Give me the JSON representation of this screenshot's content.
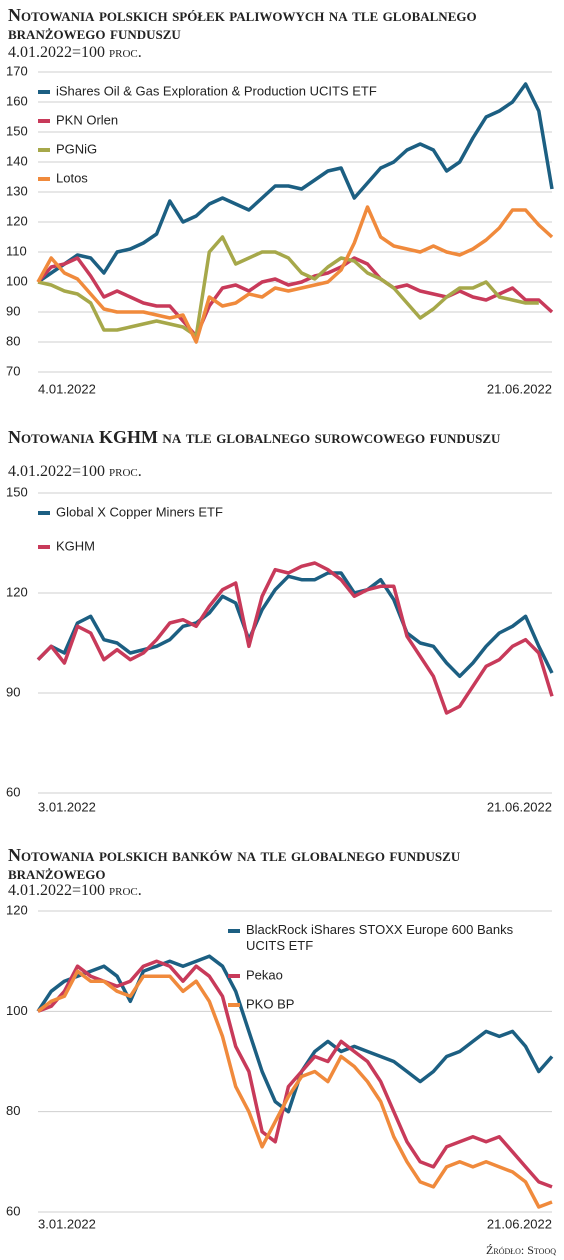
{
  "chart_data": [
    {
      "type": "line",
      "title": "Notowania polskich spółek paliwowych na tle globalnego branżowego funduszu",
      "subtitle": "4.01.2022=100 proc.",
      "categories": [
        "4.01.2022",
        null,
        null,
        null,
        null,
        null,
        null,
        null,
        null,
        null,
        null,
        null,
        null,
        null,
        null,
        null,
        null,
        null,
        null,
        null,
        null,
        null,
        null,
        null,
        null,
        null,
        null,
        null,
        null,
        null,
        null,
        null,
        null,
        null,
        null,
        null,
        null,
        null,
        null,
        "21.06.2022"
      ],
      "series": [
        {
          "name": "iShares Oil & Gas Exploration & Production UCITS ETF",
          "color": "#1c5f82",
          "values": [
            100,
            103,
            106,
            109,
            108,
            103,
            110,
            111,
            113,
            116,
            127,
            120,
            122,
            126,
            128,
            126,
            124,
            128,
            132,
            132,
            131,
            134,
            137,
            138,
            128,
            133,
            138,
            140,
            144,
            146,
            144,
            137,
            140,
            148,
            155,
            157,
            160,
            166,
            157,
            131
          ]
        },
        {
          "name": "PKN Orlen",
          "color": "#c83a5a",
          "values": [
            100,
            105,
            106,
            108,
            102,
            95,
            97,
            95,
            93,
            92,
            92,
            87,
            82,
            92,
            98,
            99,
            97,
            100,
            101,
            99,
            100,
            102,
            103,
            105,
            108,
            106,
            101,
            98,
            99,
            97,
            96,
            95,
            97,
            95,
            94,
            96,
            98,
            94,
            94,
            90
          ]
        },
        {
          "name": "PGNiG",
          "color": "#a6a84a",
          "values": [
            100,
            99,
            97,
            96,
            93,
            84,
            84,
            85,
            86,
            87,
            86,
            85,
            82,
            110,
            115,
            106,
            108,
            110,
            110,
            108,
            103,
            101,
            105,
            108,
            107,
            103,
            101,
            98,
            93,
            88,
            91,
            95,
            98,
            98,
            100,
            95,
            94,
            93,
            93,
            null
          ]
        },
        {
          "name": "Lotos",
          "color": "#f08a3c",
          "values": [
            100,
            108,
            103,
            101,
            96,
            91,
            90,
            90,
            90,
            89,
            88,
            89,
            80,
            95,
            92,
            93,
            96,
            95,
            98,
            97,
            98,
            99,
            100,
            104,
            113,
            125,
            115,
            112,
            111,
            110,
            112,
            110,
            109,
            111,
            114,
            118,
            124,
            124,
            119,
            115
          ]
        }
      ],
      "ylim": [
        70,
        170
      ],
      "yticks": [
        70,
        80,
        90,
        100,
        110,
        120,
        130,
        140,
        150,
        160,
        170
      ],
      "grid": true,
      "legend": "upper left"
    },
    {
      "type": "line",
      "title": "Notowania KGHM na tle globalnego surowcowego funduszu",
      "subtitle": "4.01.2022=100 proc.",
      "categories": [
        "3.01.2022",
        null,
        null,
        null,
        null,
        null,
        null,
        null,
        null,
        null,
        null,
        null,
        null,
        null,
        null,
        null,
        null,
        null,
        null,
        null,
        null,
        null,
        null,
        null,
        null,
        null,
        null,
        null,
        null,
        null,
        null,
        null,
        null,
        null,
        null,
        null,
        null,
        null,
        null,
        "21.06.2022"
      ],
      "series": [
        {
          "name": "Global X Copper Miners ETF",
          "color": "#1c5f82",
          "values": [
            100,
            104,
            102,
            111,
            113,
            106,
            105,
            102,
            103,
            104,
            106,
            110,
            111,
            114,
            119,
            117,
            106,
            115,
            121,
            125,
            124,
            124,
            126,
            126,
            120,
            121,
            124,
            118,
            108,
            105,
            104,
            99,
            95,
            99,
            104,
            108,
            110,
            113,
            104,
            96
          ]
        },
        {
          "name": "KGHM",
          "color": "#c83a5a",
          "values": [
            100,
            104,
            99,
            110,
            108,
            100,
            103,
            100,
            102,
            106,
            111,
            112,
            110,
            116,
            121,
            123,
            104,
            119,
            127,
            126,
            128,
            129,
            127,
            124,
            119,
            121,
            122,
            122,
            107,
            101,
            95,
            84,
            86,
            92,
            98,
            100,
            104,
            106,
            102,
            89
          ]
        }
      ],
      "ylim": [
        60,
        150
      ],
      "yticks": [
        60,
        90,
        120,
        150
      ],
      "grid": true,
      "legend": "upper left"
    },
    {
      "type": "line",
      "title": "Notowania polskich banków na tle globalnego funduszu branżowego",
      "subtitle": "4.01.2022=100 proc.",
      "categories": [
        "3.01.2022",
        null,
        null,
        null,
        null,
        null,
        null,
        null,
        null,
        null,
        null,
        null,
        null,
        null,
        null,
        null,
        null,
        null,
        null,
        null,
        null,
        null,
        null,
        null,
        null,
        null,
        null,
        null,
        null,
        null,
        null,
        null,
        null,
        null,
        null,
        null,
        null,
        null,
        null,
        "21.06.2022"
      ],
      "series": [
        {
          "name": "BlackRock iShares STOXX Europe 600 Banks UCITS ETF",
          "color": "#1c5f82",
          "values": [
            100,
            104,
            106,
            107,
            108,
            109,
            107,
            102,
            108,
            109,
            110,
            109,
            110,
            111,
            109,
            104,
            96,
            88,
            82,
            80,
            88,
            92,
            94,
            92,
            93,
            92,
            91,
            90,
            88,
            86,
            88,
            91,
            92,
            94,
            96,
            95,
            96,
            93,
            88,
            91
          ]
        },
        {
          "name": "Pekao",
          "color": "#c83a5a",
          "values": [
            100,
            101,
            104,
            109,
            107,
            106,
            105,
            106,
            109,
            110,
            109,
            106,
            109,
            107,
            103,
            93,
            88,
            76,
            74,
            85,
            88,
            91,
            90,
            94,
            92,
            90,
            86,
            80,
            74,
            70,
            69,
            73,
            74,
            75,
            74,
            75,
            72,
            69,
            66,
            65
          ]
        },
        {
          "name": "PKO BP",
          "color": "#f08a3c",
          "values": [
            100,
            102,
            103,
            108,
            106,
            106,
            104,
            103,
            107,
            107,
            107,
            104,
            106,
            102,
            95,
            85,
            80,
            73,
            78,
            83,
            87,
            88,
            86,
            91,
            89,
            86,
            82,
            75,
            70,
            66,
            65,
            69,
            70,
            69,
            70,
            69,
            68,
            66,
            61,
            62
          ]
        }
      ],
      "ylim": [
        60,
        120
      ],
      "yticks": [
        60,
        80,
        100,
        120
      ],
      "grid": true,
      "legend": "upper right",
      "source": "Źródło: Stooq"
    }
  ]
}
